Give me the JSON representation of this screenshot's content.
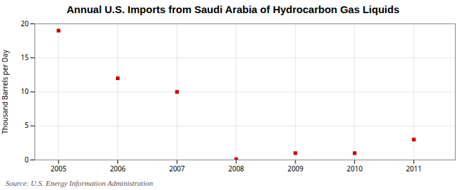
{
  "chart_data": {
    "type": "scatter",
    "title": "Annual U.S. Imports from Saudi Arabia of Hydrocarbon Gas Liquids",
    "ylabel": "Thousand Barrels per Day",
    "source": "Source: U.S. Energy Information Administration",
    "x": [
      2005,
      2006,
      2007,
      2008,
      2009,
      2010,
      2011
    ],
    "values": [
      19,
      12,
      10,
      0.1,
      1,
      1,
      3
    ],
    "color": "#cc0000",
    "marker": "square",
    "xlim": [
      2004.6,
      2011.7
    ],
    "ylim": [
      0,
      20
    ],
    "xticks": [
      2005,
      2006,
      2007,
      2008,
      2009,
      2010,
      2011
    ],
    "yticks": [
      0,
      5,
      10,
      15,
      20
    ],
    "grid": true
  }
}
